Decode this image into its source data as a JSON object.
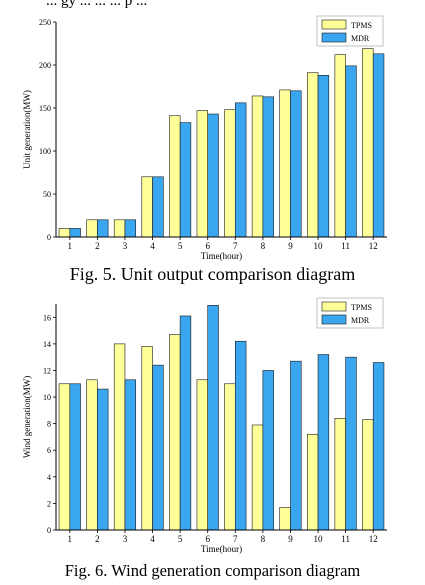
{
  "page": {
    "top_fragment": "... gy ... ... ... p ...",
    "caption1": "Fig. 5. Unit output comparison diagram",
    "caption2": "Fig. 6. Wind generation comparison diagram"
  },
  "colors": {
    "series_a": "#ffff99",
    "series_b": "#3aa6f0",
    "stroke": "#1a1a1a"
  },
  "chart_data": [
    {
      "type": "bar",
      "title": "",
      "xlabel": "Time(hour)",
      "ylabel": "Unit generation(MW)",
      "ylim": [
        0,
        250
      ],
      "yticks": [
        0,
        50,
        100,
        150,
        200,
        250
      ],
      "categories": [
        "1",
        "2",
        "3",
        "4",
        "5",
        "6",
        "7",
        "8",
        "9",
        "10",
        "11",
        "12"
      ],
      "legend_position": "top-right",
      "series": [
        {
          "name": "TPMS",
          "values": [
            10,
            20,
            20,
            70,
            141,
            147,
            148,
            164,
            171,
            191,
            212,
            219
          ]
        },
        {
          "name": "MDR",
          "values": [
            10,
            20,
            20,
            70,
            133,
            143,
            156,
            163,
            170,
            188,
            199,
            213
          ]
        }
      ]
    },
    {
      "type": "bar",
      "title": "",
      "xlabel": "Time(hour)",
      "ylabel": "Wind generation(MW)",
      "ylim": [
        0,
        17
      ],
      "yticks": [
        0,
        2,
        4,
        6,
        8,
        10,
        12,
        14,
        16
      ],
      "categories": [
        "1",
        "2",
        "3",
        "4",
        "5",
        "6",
        "7",
        "8",
        "9",
        "10",
        "11",
        "12"
      ],
      "legend_position": "top-right",
      "series": [
        {
          "name": "TPMS",
          "values": [
            11.0,
            11.3,
            14.0,
            13.8,
            14.7,
            11.3,
            11.0,
            7.9,
            1.7,
            7.2,
            8.4,
            8.3
          ]
        },
        {
          "name": "MDR",
          "values": [
            11.0,
            10.6,
            11.3,
            12.4,
            16.1,
            16.9,
            14.2,
            12.0,
            12.7,
            13.2,
            13.0,
            12.6
          ]
        }
      ]
    }
  ]
}
